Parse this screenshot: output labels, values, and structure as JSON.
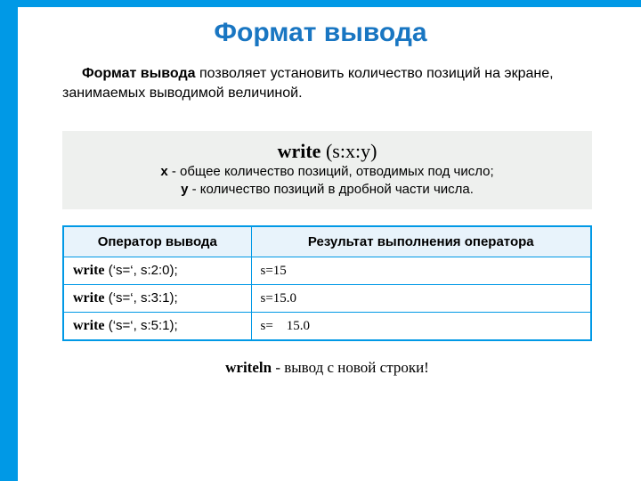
{
  "colors": {
    "accent": "#0099e6",
    "title": "#1976c2",
    "syntax_bg": "#eef0ee",
    "table_border": "#0099e6",
    "header_bg": "#e8f3fb",
    "text": "#000000"
  },
  "title": "Формат вывода",
  "intro": {
    "bold": "Формат вывода",
    "rest": " позволяет установить количество позиций на экране, занимаемых выводимой величиной."
  },
  "syntax": {
    "main_bold": "write",
    "main_rest": " (s:x:y)",
    "line1_var": "x",
    "line1_txt": " - общее количество позиций, отводимых под число;",
    "line2_var": "y",
    "line2_txt": " -  количество позиций в дробной части числа."
  },
  "table": {
    "columns": [
      "Оператор вывода",
      "Результат выполнения оператора"
    ],
    "rows": [
      {
        "op_bold": "write",
        "op_rest": " (‘s=‘, s:2:0);",
        "result": "s=15"
      },
      {
        "op_bold": "write",
        "op_rest": " (‘s=‘, s:3:1);",
        "result": "s=15.0"
      },
      {
        "op_bold": "write",
        "op_rest": " (‘s=‘, s:5:1);",
        "result": "s=    15.0"
      }
    ]
  },
  "footer": {
    "bold": "writeln ",
    "rest": " -  вывод с  новой строки!"
  }
}
